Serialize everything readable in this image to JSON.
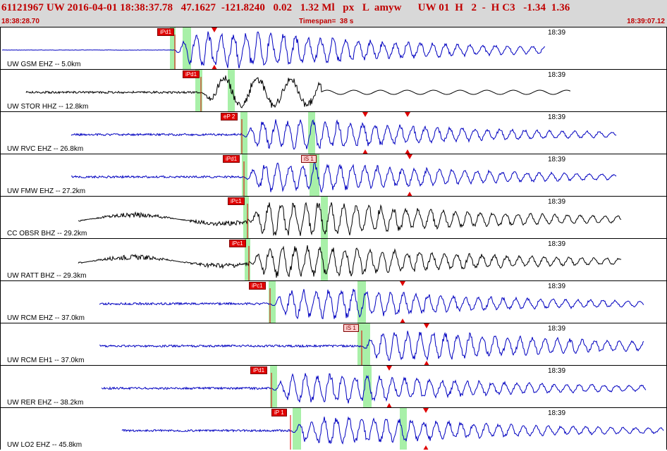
{
  "header": {
    "event_line": "61121967 UW 2016-04-01 18:38:37.78   47.1627  -121.8240   0.02   1.32 Ml   px   L  amyw      UW 01  H   2  -  H C3   -1.34  1.36",
    "start_time": "18:38:28.70",
    "timespan": "Timespan=  38 s",
    "end_time": "18:39:07.12"
  },
  "colors": {
    "accent": "#c00000",
    "trace_blue": "#0000c0",
    "trace_black": "#000000",
    "window_green": "#a8f0a8",
    "pick_red": "#e00000"
  },
  "traces": [
    {
      "label": "UW GSM EHZ -- 5.0km",
      "time": "18:39",
      "pick": "iPd1",
      "s_pick": "",
      "color": "blue"
    },
    {
      "label": "UW STOR HHZ -- 12.8km",
      "time": "18:39",
      "pick": "iPd1",
      "s_pick": "",
      "color": "black"
    },
    {
      "label": "UW RVC EHZ -- 26.8km",
      "time": "18:39",
      "pick": "eP 2",
      "s_pick": "",
      "color": "blue"
    },
    {
      "label": "UW FMW EHZ -- 27.2km",
      "time": "18:39",
      "pick": "iPd1",
      "s_pick": "iS 1",
      "color": "blue"
    },
    {
      "label": "CC OBSR BHZ -- 29.2km",
      "time": "18:39",
      "pick": "iPc1",
      "s_pick": "",
      "color": "black"
    },
    {
      "label": "UW RATT BHZ -- 29.3km",
      "time": "18:39",
      "pick": "iPc1",
      "s_pick": "",
      "color": "black"
    },
    {
      "label": "UW RCM EHZ -- 37.0km",
      "time": "18:39",
      "pick": "iPc1",
      "s_pick": "",
      "color": "blue"
    },
    {
      "label": "UW RCM EH1 -- 37.0km",
      "time": "18:39",
      "pick": "",
      "s_pick": "iS 1",
      "color": "blue"
    },
    {
      "label": "UW RER EHZ -- 38.2km",
      "time": "18:39",
      "pick": "iPd1",
      "s_pick": "",
      "color": "blue"
    },
    {
      "label": "UW LO2 EHZ -- 45.8km",
      "time": "18:39",
      "pick": "iP 1",
      "s_pick": "",
      "color": "blue"
    }
  ]
}
